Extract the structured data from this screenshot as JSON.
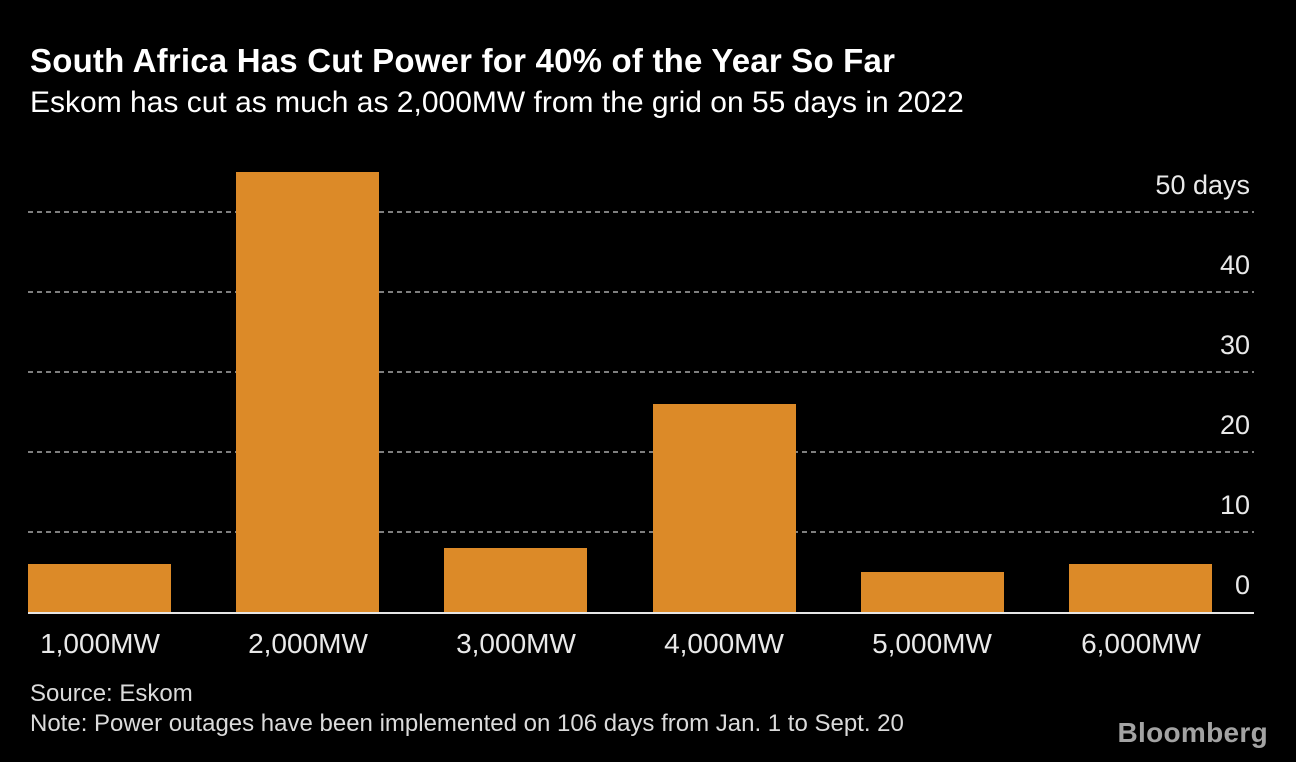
{
  "header": {
    "title": "South Africa Has Cut Power for 40% of the Year So Far",
    "subtitle": "Eskom has cut as much as 2,000MW from the grid on 55 days in 2022"
  },
  "chart_data": {
    "type": "bar",
    "categories": [
      "1,000MW",
      "2,000MW",
      "3,000MW",
      "4,000MW",
      "5,000MW",
      "6,000MW"
    ],
    "values": [
      6,
      55,
      8,
      26,
      5,
      6
    ],
    "title": "South Africa Has Cut Power for 40% of the Year So Far",
    "subtitle": "Eskom has cut as much as 2,000MW from the grid on 55 days in 2022",
    "xlabel": "",
    "ylabel": "days",
    "yticks": [
      0,
      10,
      20,
      30,
      40,
      50
    ],
    "ytick_labels": [
      "0",
      "10",
      "20",
      "30",
      "40",
      "50 days"
    ],
    "ylim": [
      0,
      57
    ],
    "grid": "dotted-horizontal",
    "gridline_values": [
      10,
      20,
      30,
      40,
      50
    ],
    "legend": "none",
    "axis_label_side": "right"
  },
  "footer": {
    "source": "Source: Eskom",
    "note": "Note: Power outages have been implemented on 106 days from Jan. 1 to Sept. 20",
    "brand": "Bloomberg"
  },
  "colors": {
    "background": "#000000",
    "bar": "#DC8A28",
    "title_text": "#FFFFFF",
    "gridline": "#7F7F7F",
    "axis_line": "#E6E6E6",
    "tick_label": "#E9E9E9",
    "footer_text": "#DBDBDB",
    "brand_text": "#A3A3A3"
  }
}
